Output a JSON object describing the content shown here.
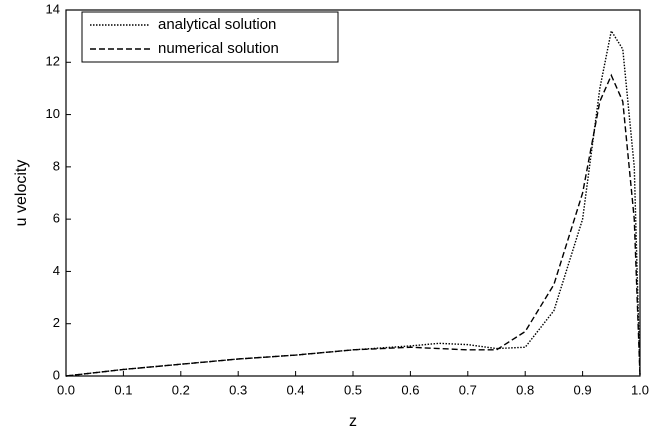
{
  "chart_data": {
    "type": "line",
    "xlabel": "z",
    "ylabel": "u velocity",
    "x": [
      0,
      0.1,
      0.2,
      0.3,
      0.4,
      0.5,
      0.6,
      0.65,
      0.7,
      0.75,
      0.8,
      0.85,
      0.9,
      0.93,
      0.95,
      0.97,
      0.99,
      1.0
    ],
    "series": [
      {
        "name": "analytical solution",
        "color": "#000000",
        "style": "dotted",
        "values": [
          0,
          0.25,
          0.45,
          0.65,
          0.8,
          1.0,
          1.15,
          1.25,
          1.2,
          1.05,
          1.1,
          2.5,
          6,
          11,
          13.2,
          12.5,
          8,
          0
        ]
      },
      {
        "name": "numerical solution",
        "color": "#000000",
        "style": "dashed",
        "values": [
          0,
          0.25,
          0.45,
          0.65,
          0.8,
          1.0,
          1.1,
          1.05,
          1.0,
          1.0,
          1.7,
          3.5,
          7,
          10.5,
          11.5,
          10.5,
          6,
          0
        ]
      }
    ],
    "xlim": [
      0,
      1
    ],
    "ylim": [
      0,
      14
    ],
    "xticks": [
      {
        "value": 0,
        "label": "0.0"
      },
      0.1,
      0.2,
      0.3,
      0.4,
      0.5,
      0.6,
      0.7,
      0.8,
      0.9,
      {
        "value": 1,
        "label": "1.0"
      }
    ],
    "yticks": [
      0,
      2,
      4,
      6,
      8,
      10,
      12,
      14
    ],
    "legend": "upper-left"
  }
}
